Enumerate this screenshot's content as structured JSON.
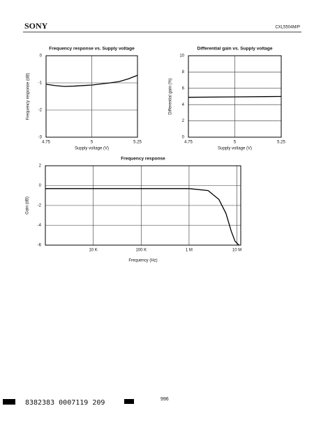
{
  "header": {
    "brand": "SONY",
    "part": "CXL5504M/P"
  },
  "footer": {
    "code": "8382383 0007119 209",
    "page": "996"
  },
  "chart_data": [
    {
      "type": "line",
      "title": "Frequency response vs. Supply voltage",
      "x_label": "Supply voltage (V)",
      "y_label": "Frequency response (dB)",
      "x": [
        4.75,
        4.8,
        4.85,
        4.9,
        5.0,
        5.1,
        5.15,
        5.2,
        5.25
      ],
      "series": [
        {
          "color": "#000000",
          "values": [
            -1.05,
            -1.1,
            -1.13,
            -1.12,
            -1.08,
            -1.0,
            -0.95,
            -0.85,
            -0.72
          ]
        }
      ],
      "xlim": [
        4.75,
        5.25
      ],
      "xticks": [
        4.75,
        5,
        5.25
      ],
      "ylim": [
        -3,
        0
      ],
      "yticks": [
        0,
        -1,
        -2,
        -3
      ],
      "grid": true
    },
    {
      "type": "line",
      "title": "Differential gain vs. Supply voltage",
      "x_label": "Supply voltage (V)",
      "y_label": "Differential gain (%)",
      "x": [
        4.75,
        5.0,
        5.25
      ],
      "series": [
        {
          "color": "#000000",
          "values": [
            4.9,
            4.95,
            5.0
          ]
        }
      ],
      "xlim": [
        4.75,
        5.25
      ],
      "xticks": [
        4.75,
        5,
        5.25
      ],
      "ylim": [
        0,
        10
      ],
      "yticks": [
        0,
        2,
        4,
        6,
        8,
        10
      ],
      "grid": true
    },
    {
      "type": "line",
      "title": "Frequency response",
      "x_label": "Frequency (Hz)",
      "y_label": "Gain (dB)",
      "xscale": "log",
      "x": [
        1000,
        100000,
        1000000,
        2500000,
        4200000,
        5900000,
        7600000,
        9100000,
        11000000
      ],
      "series": [
        {
          "color": "#000000",
          "values": [
            -0.3,
            -0.3,
            -0.3,
            -0.5,
            -1.4,
            -2.8,
            -4.6,
            -5.6,
            -6
          ]
        }
      ],
      "xlim": [
        1000,
        12000000
      ],
      "xticks": [
        {
          "value": 10000,
          "label": "10 K"
        },
        {
          "value": 100000,
          "label": "100 K"
        },
        {
          "value": 1000000,
          "label": "1 M"
        },
        {
          "value": 10000000,
          "label": "10 M"
        }
      ],
      "ylim": [
        -6,
        2
      ],
      "yticks": [
        2,
        0,
        -2,
        -4,
        -6
      ],
      "grid": true
    }
  ]
}
